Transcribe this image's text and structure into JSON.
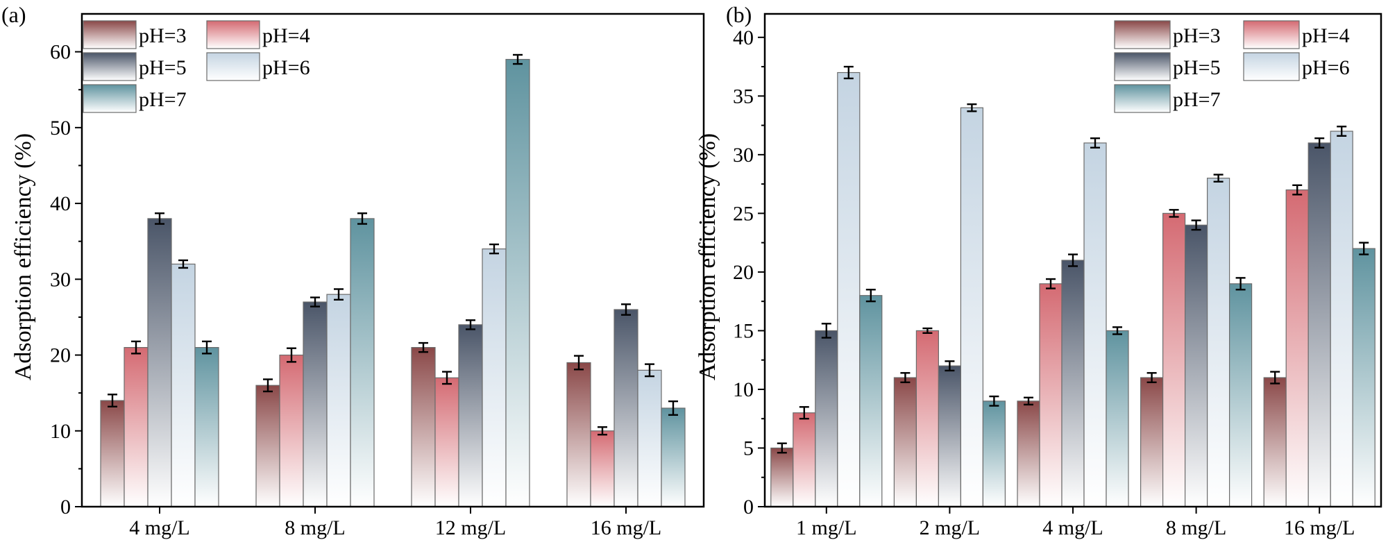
{
  "chart_data": [
    {
      "panel": "(a)",
      "type": "bar",
      "title": "",
      "xlabel": "",
      "ylabel": "Adsorption efficiency (%)",
      "ylim": [
        0,
        65
      ],
      "yticks": [
        0,
        10,
        20,
        30,
        40,
        50,
        60
      ],
      "grid": false,
      "legend_position": "top-left",
      "categories": [
        "4 mg/L",
        "8 mg/L",
        "12 mg/L",
        "16 mg/L"
      ],
      "series": [
        {
          "name": "pH=3",
          "color": "#8a4848",
          "values": [
            14,
            16,
            21,
            19
          ],
          "errors": [
            0.8,
            0.8,
            0.6,
            0.9
          ]
        },
        {
          "name": "pH=4",
          "color": "#d46a72",
          "values": [
            21,
            20,
            17,
            10
          ],
          "errors": [
            0.8,
            0.9,
            0.8,
            0.5
          ]
        },
        {
          "name": "pH=5",
          "color": "#4a5568",
          "values": [
            38,
            27,
            24,
            26
          ],
          "errors": [
            0.7,
            0.6,
            0.6,
            0.7
          ]
        },
        {
          "name": "pH=6",
          "color": "#c4d4e2",
          "values": [
            32,
            28,
            34,
            18
          ],
          "errors": [
            0.5,
            0.7,
            0.6,
            0.8
          ]
        },
        {
          "name": "pH=7",
          "color": "#5f939f",
          "values": [
            21,
            38,
            59,
            13
          ],
          "errors": [
            0.8,
            0.7,
            0.6,
            0.9
          ]
        }
      ]
    },
    {
      "panel": "(b)",
      "type": "bar",
      "title": "",
      "xlabel": "",
      "ylabel": "Adsorption efficiency (%)",
      "ylim": [
        0,
        42
      ],
      "yticks": [
        0,
        5,
        10,
        15,
        20,
        25,
        30,
        35,
        40
      ],
      "grid": false,
      "legend_position": "top-right",
      "categories": [
        "1 mg/L",
        "2 mg/L",
        "4 mg/L",
        "8 mg/L",
        "16 mg/L"
      ],
      "series": [
        {
          "name": "pH=3",
          "color": "#8a4848",
          "values": [
            5,
            11,
            9,
            11,
            11
          ],
          "errors": [
            0.4,
            0.4,
            0.3,
            0.4,
            0.5
          ]
        },
        {
          "name": "pH=4",
          "color": "#d46a72",
          "values": [
            8,
            15,
            19,
            25,
            27
          ],
          "errors": [
            0.5,
            0.2,
            0.4,
            0.3,
            0.4
          ]
        },
        {
          "name": "pH=5",
          "color": "#4a5568",
          "values": [
            15,
            12,
            21,
            24,
            31
          ],
          "errors": [
            0.6,
            0.4,
            0.5,
            0.4,
            0.4
          ]
        },
        {
          "name": "pH=6",
          "color": "#c4d4e2",
          "values": [
            37,
            34,
            31,
            28,
            32
          ],
          "errors": [
            0.5,
            0.3,
            0.4,
            0.3,
            0.4
          ]
        },
        {
          "name": "pH=7",
          "color": "#5f939f",
          "values": [
            18,
            9,
            15,
            19,
            22
          ],
          "errors": [
            0.5,
            0.4,
            0.3,
            0.5,
            0.5
          ]
        }
      ]
    }
  ]
}
